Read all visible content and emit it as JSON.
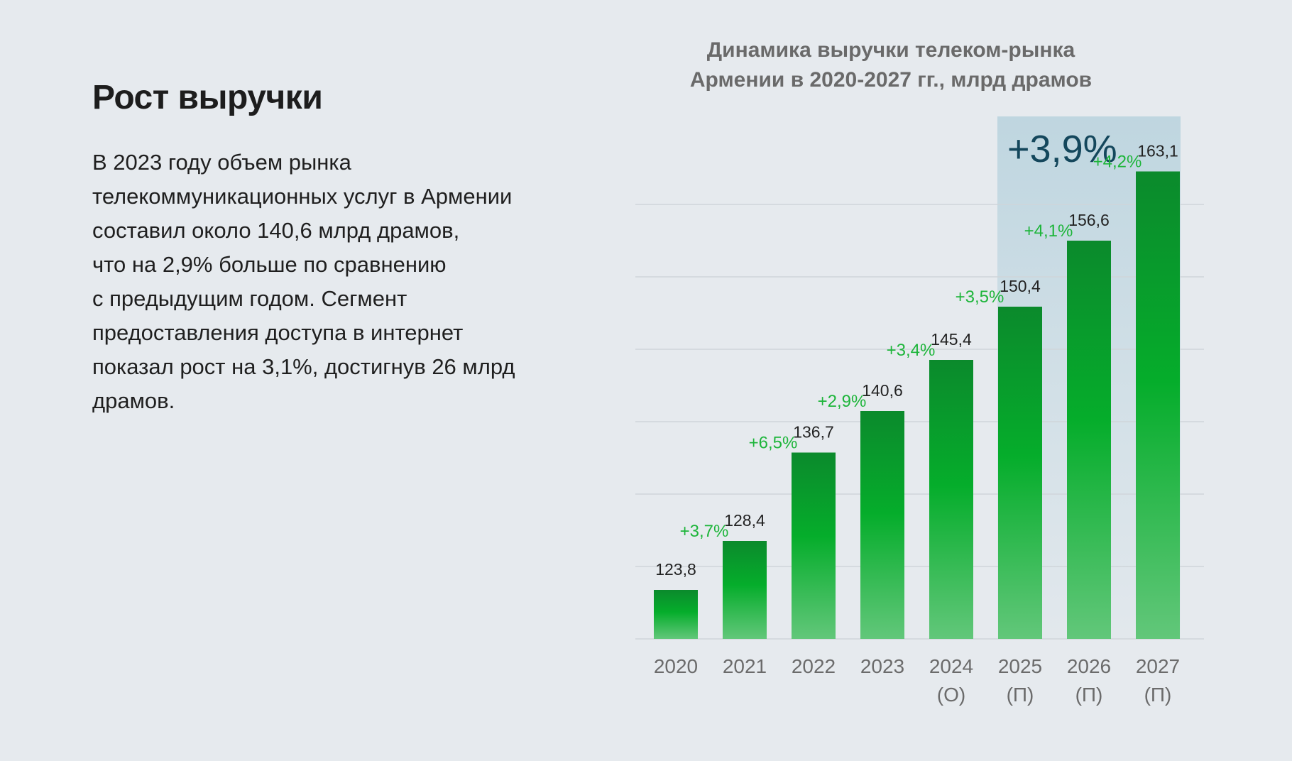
{
  "heading": "Рост выручки",
  "body_text": "В 2023 году объем рынка\nтелекоммуникационных услуг в Армении\nсоставил около 140,6 млрд драмов,\nчто на 2,9% больше по сравнению\nс предыдущим годом. Сегмент\nпредоставления доступа в интернет\nпоказал рост на 3,1%, достигнув 26 млрд\nдрамов.",
  "chart_data": {
    "type": "bar",
    "title": "Динамика выручки телеком-рынка\nАрмении в 2020-2027 гг., млрд драмов",
    "categories": [
      "2020",
      "2021",
      "2022",
      "2023",
      "2024\n(О)",
      "2025\n(П)",
      "2026\n(П)",
      "2027\n(П)"
    ],
    "values": [
      123.8,
      128.4,
      136.7,
      140.6,
      145.4,
      150.4,
      156.6,
      163.1
    ],
    "value_labels": [
      "123,8",
      "128,4",
      "136,7",
      "140,6",
      "145,4",
      "150,4",
      "156,6",
      "163,1"
    ],
    "growth_labels": [
      "+3,7%",
      "+6,5%",
      "+2,9%",
      "+3,4%",
      "+3,5%",
      "+4,1%",
      "+4,2%"
    ],
    "highlight": {
      "label": "+3,9%",
      "from_category": "2025\n(П)",
      "to_category": "2027\n(П)"
    },
    "grid": true,
    "colors": {
      "bar_top": "#0b8a2c",
      "bar_mid": "#05ad2b",
      "bar_bottom": "#62c77a",
      "growth_text": "#1db53a",
      "highlight_bg": "#bfd6e0",
      "highlight_text": "#14475c"
    }
  }
}
